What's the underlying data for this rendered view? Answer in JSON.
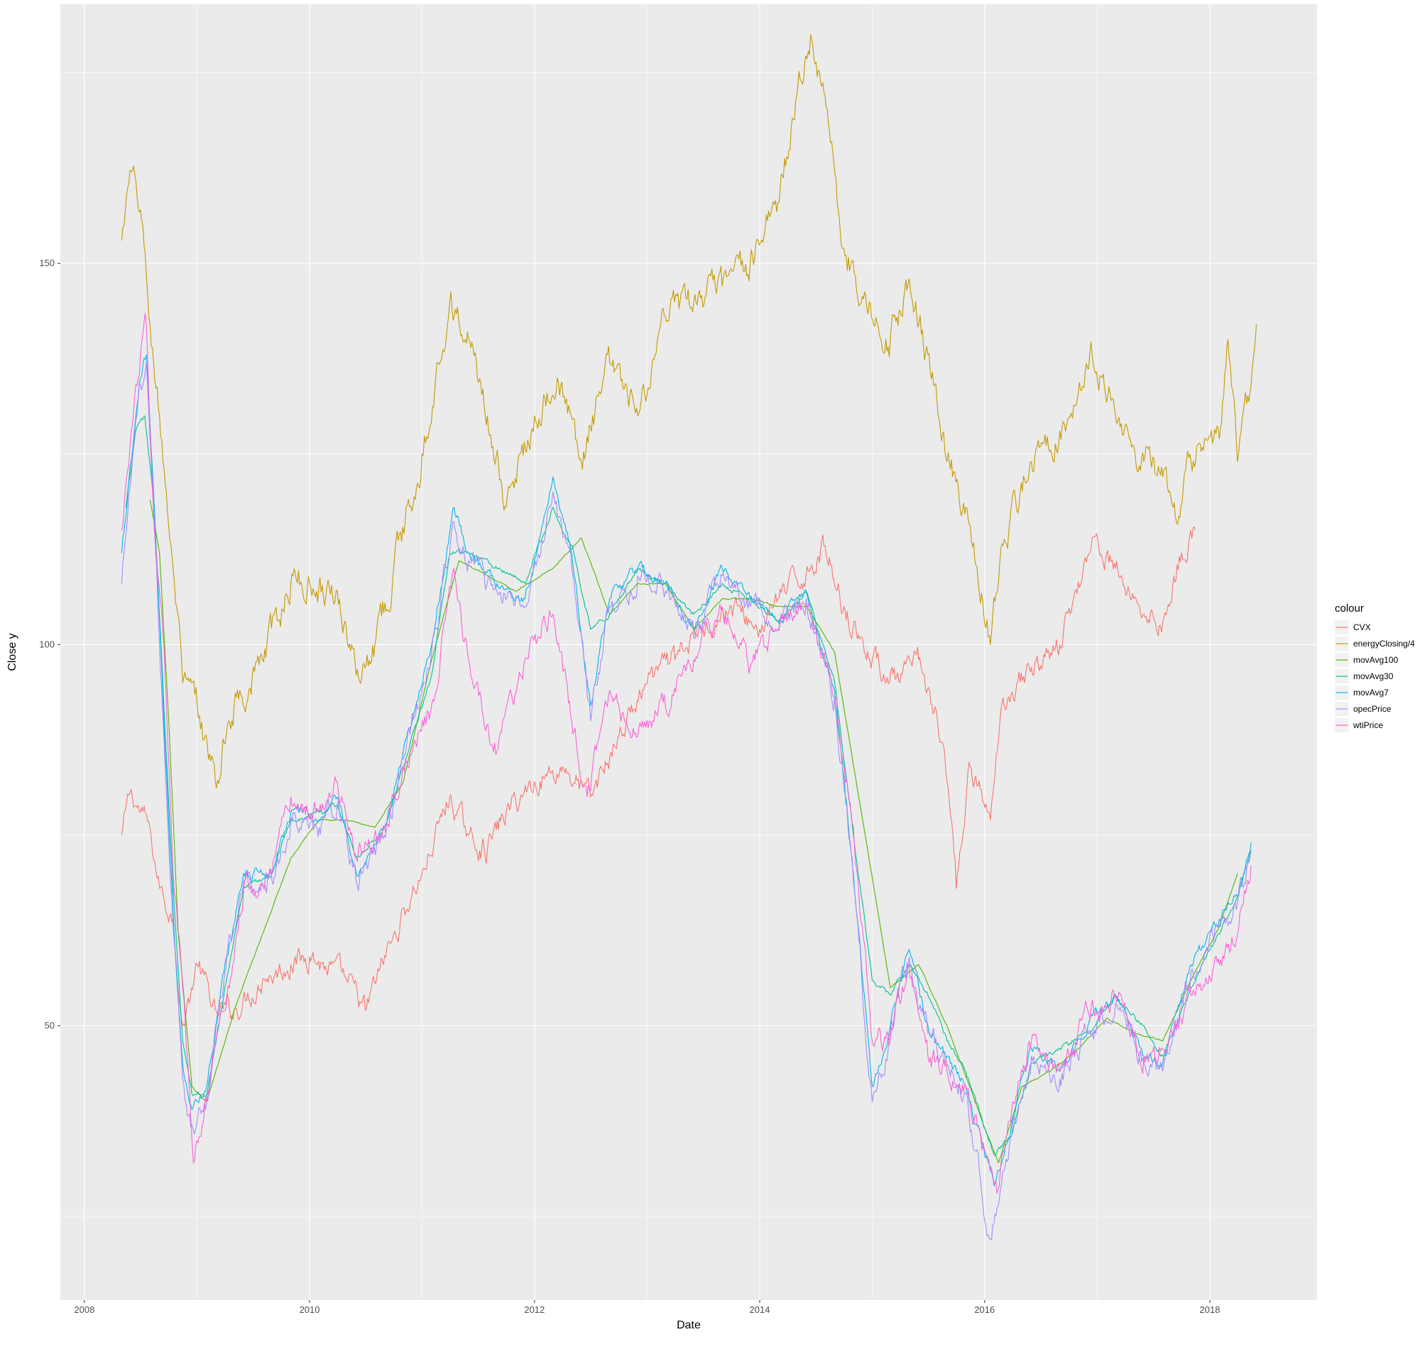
{
  "chart_data": {
    "type": "line",
    "title": "",
    "xlabel": "Date",
    "ylabel": "Close y",
    "x_type": "date",
    "xlim": [
      "2007-10-15",
      "2018-12-15"
    ],
    "ylim": [
      14,
      184
    ],
    "x_ticks": [
      {
        "value": "2008-01-01",
        "label": "2008"
      },
      {
        "value": "2010-01-01",
        "label": "2010"
      },
      {
        "value": "2012-01-01",
        "label": "2012"
      },
      {
        "value": "2014-01-01",
        "label": "2014"
      },
      {
        "value": "2016-01-01",
        "label": "2016"
      },
      {
        "value": "2018-01-01",
        "label": "2018"
      }
    ],
    "y_ticks": [
      {
        "value": 50,
        "label": "50"
      },
      {
        "value": 100,
        "label": "100"
      },
      {
        "value": 150,
        "label": "150"
      }
    ],
    "y_minor_ticks": [
      25,
      75,
      125,
      175
    ],
    "grid": true,
    "panel_background": "#ebebeb",
    "grid_color": "#ffffff",
    "legend": {
      "title": "colour",
      "position": "right"
    },
    "series": [
      {
        "name": "CVX",
        "color": "#f8766d",
        "x": [
          "2008-05-01",
          "2008-06-01",
          "2008-07-01",
          "2008-08-01",
          "2008-09-01",
          "2008-10-15",
          "2008-11-15",
          "2009-01-01",
          "2009-03-01",
          "2009-05-01",
          "2009-08-01",
          "2009-11-01",
          "2010-01-01",
          "2010-05-01",
          "2010-07-01",
          "2010-10-01",
          "2011-01-01",
          "2011-04-01",
          "2011-06-01",
          "2011-08-01",
          "2011-10-01",
          "2012-01-01",
          "2012-04-01",
          "2012-07-01",
          "2012-10-01",
          "2013-01-01",
          "2013-04-01",
          "2013-07-01",
          "2013-10-01",
          "2014-01-01",
          "2014-03-01",
          "2014-06-15",
          "2014-08-01",
          "2014-10-01",
          "2015-01-01",
          "2015-04-01",
          "2015-06-01",
          "2015-08-01",
          "2015-09-01",
          "2015-10-01",
          "2015-11-15",
          "2016-01-20",
          "2016-03-01",
          "2016-06-01",
          "2016-09-01",
          "2016-12-15",
          "2017-03-01",
          "2017-06-01",
          "2017-08-01",
          "2017-10-01",
          "2017-11-15"
        ],
        "y": [
          75,
          81,
          78,
          76,
          68,
          64,
          50,
          58,
          52,
          52,
          56,
          58,
          59,
          56,
          52,
          62,
          70,
          80,
          75,
          73,
          78,
          82,
          84,
          80,
          88,
          95,
          98,
          102,
          105,
          102,
          106,
          110,
          113,
          105,
          98,
          95,
          98,
          90,
          82,
          68,
          84,
          77,
          93,
          97,
          100,
          114,
          110,
          104,
          103,
          112,
          115
        ]
      },
      {
        "name": "energyClosing/4",
        "color": "#c49a00",
        "x": [
          "2008-05-01",
          "2008-06-01",
          "2008-07-01",
          "2008-08-01",
          "2008-09-01",
          "2008-10-15",
          "2008-11-15",
          "2009-01-01",
          "2009-03-01",
          "2009-05-01",
          "2009-08-01",
          "2009-11-01",
          "2010-01-01",
          "2010-04-01",
          "2010-06-01",
          "2010-08-01",
          "2010-10-01",
          "2011-01-01",
          "2011-04-01",
          "2011-06-01",
          "2011-08-01",
          "2011-10-01",
          "2012-01-01",
          "2012-03-15",
          "2012-06-01",
          "2012-09-01",
          "2012-12-01",
          "2013-03-01",
          "2013-06-01",
          "2013-09-01",
          "2013-12-01",
          "2014-03-01",
          "2014-05-01",
          "2014-06-15",
          "2014-08-01",
          "2014-10-01",
          "2014-12-15",
          "2015-03-01",
          "2015-05-01",
          "2015-07-01",
          "2015-09-01",
          "2015-11-01",
          "2016-01-20",
          "2016-03-01",
          "2016-06-01",
          "2016-09-01",
          "2016-12-15",
          "2017-03-01",
          "2017-06-01",
          "2017-08-01",
          "2017-09-15",
          "2017-11-01",
          "2017-12-15",
          "2018-02-01",
          "2018-03-01",
          "2018-04-01",
          "2018-05-15",
          "2018-06-01"
        ],
        "y": [
          153,
          162,
          157,
          142,
          130,
          110,
          95,
          92,
          82,
          92,
          98,
          108,
          108,
          107,
          96,
          100,
          110,
          125,
          145,
          140,
          130,
          118,
          130,
          135,
          124,
          137,
          130,
          143,
          145,
          147,
          150,
          158,
          172,
          180,
          172,
          152,
          144,
          140,
          148,
          138,
          124,
          118,
          100,
          113,
          124,
          128,
          138,
          130,
          124,
          122,
          116,
          124,
          127,
          127,
          140,
          124,
          134,
          142
        ]
      },
      {
        "name": "movAvg100",
        "color": "#53b400",
        "x": [
          "2008-08-01",
          "2008-09-01",
          "2008-10-01",
          "2008-11-01",
          "2008-12-15",
          "2009-02-01",
          "2009-05-01",
          "2009-08-01",
          "2009-11-01",
          "2010-02-01",
          "2010-05-01",
          "2010-08-01",
          "2010-11-01",
          "2011-02-01",
          "2011-05-01",
          "2011-08-01",
          "2011-11-01",
          "2012-03-01",
          "2012-06-01",
          "2012-09-01",
          "2012-12-01",
          "2013-03-01",
          "2013-06-01",
          "2013-09-01",
          "2013-12-01",
          "2014-03-01",
          "2014-06-01",
          "2014-09-01",
          "2014-12-01",
          "2015-03-01",
          "2015-06-01",
          "2015-09-01",
          "2015-12-01",
          "2016-02-15",
          "2016-05-01",
          "2016-08-01",
          "2016-11-01",
          "2017-02-01",
          "2017-05-01",
          "2017-08-01",
          "2017-11-01",
          "2018-02-01",
          "2018-04-01"
        ],
        "y": [
          119,
          112,
          90,
          62,
          42,
          40,
          52,
          62,
          72,
          77,
          77,
          76,
          82,
          98,
          111,
          109,
          107,
          110,
          114,
          104,
          108,
          108,
          102,
          106,
          106,
          105,
          105,
          99,
          77,
          55,
          58,
          50,
          40,
          32,
          42,
          44,
          47,
          51,
          49,
          48,
          56,
          63,
          70
        ]
      },
      {
        "name": "movAvg30",
        "color": "#00c094",
        "x": [
          "2008-05-15",
          "2008-06-15",
          "2008-07-15",
          "2008-08-15",
          "2008-09-15",
          "2008-10-15",
          "2008-11-15",
          "2008-12-15",
          "2009-02-01",
          "2009-04-01",
          "2009-06-01",
          "2009-09-01",
          "2009-11-01",
          "2010-02-01",
          "2010-04-01",
          "2010-06-01",
          "2010-09-01",
          "2010-11-01",
          "2011-02-01",
          "2011-04-01",
          "2011-06-01",
          "2011-09-01",
          "2011-12-01",
          "2012-03-01",
          "2012-05-01",
          "2012-07-01",
          "2012-09-01",
          "2012-12-01",
          "2013-03-01",
          "2013-06-01",
          "2013-09-01",
          "2013-12-01",
          "2014-03-01",
          "2014-06-01",
          "2014-09-01",
          "2014-11-01",
          "2015-01-01",
          "2015-03-01",
          "2015-05-01",
          "2015-07-01",
          "2015-09-01",
          "2015-11-01",
          "2016-02-01",
          "2016-04-01",
          "2016-06-01",
          "2016-09-01",
          "2016-12-01",
          "2017-03-01",
          "2017-06-01",
          "2017-08-01",
          "2017-11-01",
          "2018-02-01",
          "2018-04-01",
          "2018-05-15"
        ],
        "y": [
          118,
          128,
          130,
          118,
          92,
          68,
          48,
          41,
          41,
          55,
          68,
          70,
          77,
          78,
          79,
          72,
          76,
          84,
          96,
          112,
          112,
          110,
          108,
          118,
          113,
          102,
          104,
          110,
          108,
          104,
          108,
          106,
          103,
          107,
          95,
          75,
          56,
          54,
          58,
          54,
          48,
          44,
          33,
          36,
          45,
          47,
          49,
          54,
          50,
          46,
          55,
          62,
          67,
          73
        ]
      },
      {
        "name": "movAvg7",
        "color": "#00b6eb",
        "x": [
          "2008-05-01",
          "2008-06-01",
          "2008-07-01",
          "2008-07-20",
          "2008-08-15",
          "2008-09-15",
          "2008-10-15",
          "2008-11-15",
          "2008-12-15",
          "2009-02-01",
          "2009-04-01",
          "2009-06-01",
          "2009-09-01",
          "2009-11-01",
          "2010-02-01",
          "2010-04-01",
          "2010-06-01",
          "2010-09-01",
          "2010-11-01",
          "2011-02-01",
          "2011-04-15",
          "2011-06-01",
          "2011-09-01",
          "2011-12-01",
          "2012-03-01",
          "2012-05-01",
          "2012-07-01",
          "2012-09-01",
          "2012-12-01",
          "2013-03-01",
          "2013-06-01",
          "2013-09-01",
          "2013-12-01",
          "2014-03-01",
          "2014-06-01",
          "2014-09-01",
          "2014-11-01",
          "2015-01-01",
          "2015-03-01",
          "2015-05-01",
          "2015-07-01",
          "2015-09-01",
          "2015-11-01",
          "2016-02-01",
          "2016-04-01",
          "2016-06-01",
          "2016-09-01",
          "2016-12-01",
          "2017-03-01",
          "2017-06-01",
          "2017-08-01",
          "2017-11-01",
          "2018-02-01",
          "2018-04-01",
          "2018-05-15"
        ],
        "y": [
          112,
          124,
          135,
          138,
          118,
          90,
          65,
          45,
          39,
          42,
          58,
          70,
          70,
          78,
          77,
          80,
          70,
          76,
          86,
          100,
          118,
          112,
          108,
          106,
          122,
          112,
          92,
          106,
          110,
          108,
          102,
          110,
          106,
          103,
          107,
          94,
          70,
          42,
          50,
          60,
          50,
          46,
          42,
          29,
          38,
          47,
          44,
          50,
          54,
          46,
          45,
          58,
          64,
          67,
          74
        ]
      },
      {
        "name": "opecPrice",
        "color": "#a58aff",
        "x": [
          "2008-05-01",
          "2008-06-01",
          "2008-07-01",
          "2008-07-20",
          "2008-08-15",
          "2008-09-15",
          "2008-10-15",
          "2008-11-15",
          "2008-12-15",
          "2009-02-01",
          "2009-04-01",
          "2009-06-01",
          "2009-09-01",
          "2009-11-01",
          "2010-02-01",
          "2010-04-01",
          "2010-06-01",
          "2010-09-01",
          "2010-11-01",
          "2011-02-01",
          "2011-04-15",
          "2011-06-01",
          "2011-09-01",
          "2011-12-01",
          "2012-03-01",
          "2012-05-01",
          "2012-07-01",
          "2012-09-01",
          "2012-12-01",
          "2013-03-01",
          "2013-06-01",
          "2013-09-01",
          "2013-12-01",
          "2014-03-01",
          "2014-06-01",
          "2014-09-01",
          "2014-11-01",
          "2015-01-01",
          "2015-03-01",
          "2015-05-01",
          "2015-07-01",
          "2015-09-01",
          "2015-11-01",
          "2016-01-20",
          "2016-04-01",
          "2016-06-01",
          "2016-09-01",
          "2016-12-01",
          "2017-03-01",
          "2017-06-01",
          "2017-08-01",
          "2017-11-01",
          "2018-02-01",
          "2018-04-01",
          "2018-05-15"
        ],
        "y": [
          108,
          122,
          134,
          137,
          116,
          88,
          63,
          43,
          37,
          40,
          57,
          69,
          69,
          77,
          76,
          79,
          69,
          75,
          85,
          99,
          116,
          111,
          107,
          105,
          120,
          110,
          90,
          105,
          109,
          107,
          101,
          109,
          105,
          102,
          106,
          93,
          69,
          40,
          49,
          59,
          49,
          45,
          41,
          22,
          37,
          46,
          43,
          49,
          53,
          45,
          44,
          57,
          63,
          66,
          73
        ]
      },
      {
        "name": "wtiPrice",
        "color": "#fb61d7",
        "x": [
          "2008-05-01",
          "2008-06-01",
          "2008-07-01",
          "2008-07-20",
          "2008-08-15",
          "2008-09-15",
          "2008-10-15",
          "2008-11-15",
          "2008-12-20",
          "2009-02-01",
          "2009-04-01",
          "2009-06-01",
          "2009-09-01",
          "2009-11-01",
          "2010-02-01",
          "2010-04-01",
          "2010-06-01",
          "2010-09-01",
          "2010-11-01",
          "2011-02-01",
          "2011-04-15",
          "2011-06-01",
          "2011-09-01",
          "2011-12-01",
          "2012-03-01",
          "2012-05-01",
          "2012-06-20",
          "2012-09-01",
          "2012-12-01",
          "2013-03-01",
          "2013-06-01",
          "2013-09-01",
          "2013-12-01",
          "2014-03-01",
          "2014-06-01",
          "2014-09-01",
          "2014-11-01",
          "2015-01-01",
          "2015-03-01",
          "2015-05-01",
          "2015-07-01",
          "2015-09-01",
          "2015-11-01",
          "2016-02-10",
          "2016-04-01",
          "2016-06-01",
          "2016-09-01",
          "2016-12-01",
          "2017-03-01",
          "2017-06-01",
          "2017-08-01",
          "2017-11-01",
          "2018-02-01",
          "2018-04-01",
          "2018-05-15"
        ],
        "y": [
          115,
          128,
          138,
          142,
          115,
          100,
          70,
          55,
          32,
          40,
          52,
          68,
          70,
          80,
          78,
          82,
          72,
          76,
          84,
          92,
          110,
          98,
          86,
          98,
          104,
          90,
          80,
          94,
          88,
          92,
          98,
          105,
          97,
          102,
          105,
          93,
          76,
          48,
          48,
          58,
          46,
          44,
          42,
          28,
          40,
          48,
          44,
          52,
          54,
          46,
          47,
          54,
          58,
          62,
          71
        ]
      }
    ]
  }
}
